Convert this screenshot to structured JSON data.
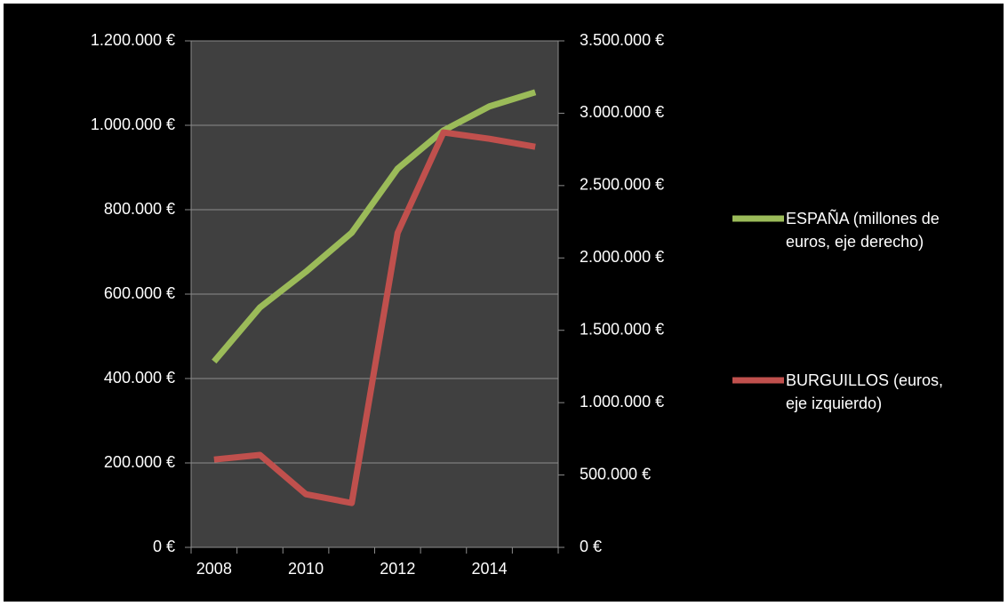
{
  "chart_data": {
    "type": "line",
    "categories": [
      "2008",
      null,
      "2010",
      null,
      "2012",
      null,
      "2014",
      null
    ],
    "series": [
      {
        "name": "ESPAÑA (millones de euros, eje derecho)",
        "color": "#9bbb59",
        "axis": "y2",
        "values": [
          1284000,
          1658000,
          1904000,
          2174000,
          2617000,
          2881000,
          3047000,
          3145000
        ]
      },
      {
        "name": "BURGUILLOS (euros, eje izquierdo)",
        "color": "#c0504d",
        "values": [
          208000,
          219000,
          126000,
          105000,
          745000,
          983000,
          968000,
          949000
        ]
      }
    ],
    "ylim": [
      0,
      1200000
    ],
    "yticks": [
      {
        "value": 0,
        "label": "0 €"
      },
      {
        "value": 200000,
        "label": "200.000 €"
      },
      {
        "value": 400000,
        "label": "400.000 €"
      },
      {
        "value": 600000,
        "label": "600.000 €"
      },
      {
        "value": 800000,
        "label": "800.000 €"
      },
      {
        "value": 1000000,
        "label": "1.000.000 €"
      },
      {
        "value": 1200000,
        "label": "1.200.000 €"
      }
    ],
    "y2lim": [
      0,
      3500000
    ],
    "y2ticks": [
      {
        "value": 0,
        "label": "0 €"
      },
      {
        "value": 500000,
        "label": "500.000 €"
      },
      {
        "value": 1000000,
        "label": "1.000.000 €"
      },
      {
        "value": 1500000,
        "label": "1.500.000 €"
      },
      {
        "value": 2000000,
        "label": "2.000.000 €"
      },
      {
        "value": 2500000,
        "label": "2.500.000 €"
      },
      {
        "value": 3000000,
        "label": "3.000.000 €"
      },
      {
        "value": 3500000,
        "label": "3.500.000 €"
      }
    ],
    "grid": true,
    "legend": "right"
  }
}
